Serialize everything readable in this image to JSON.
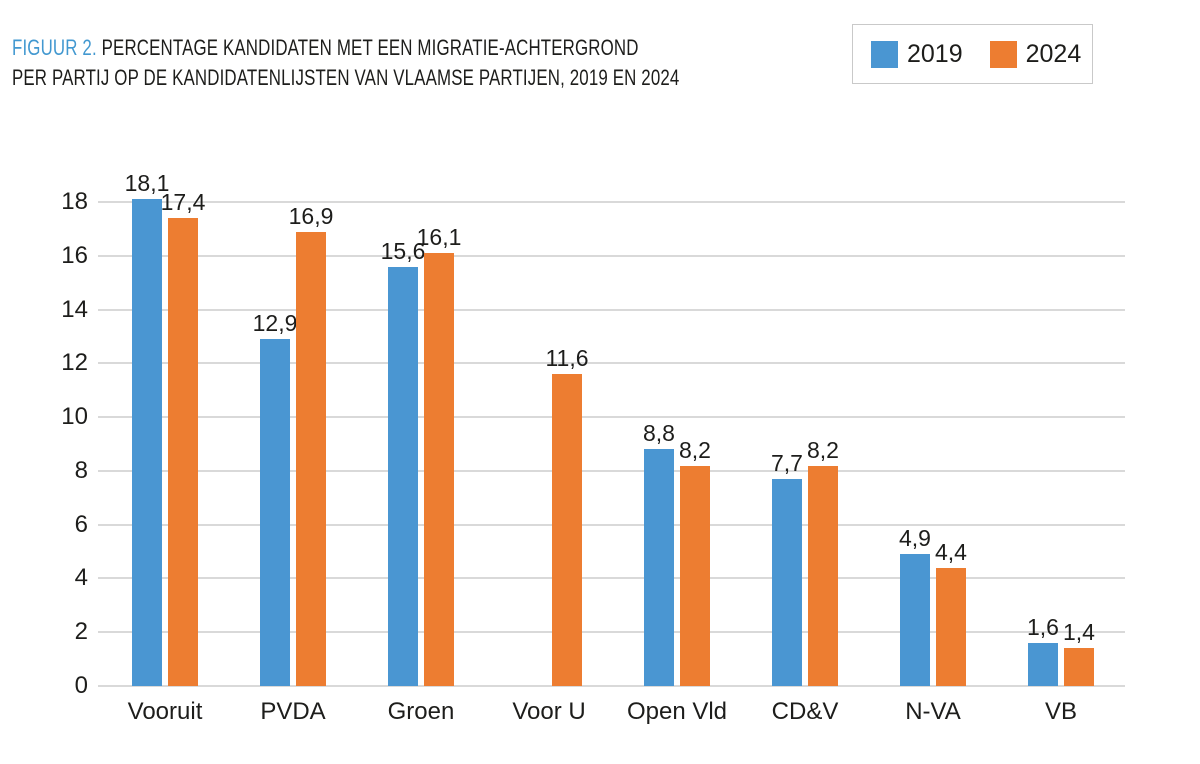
{
  "figure": {
    "number": "FIGUUR 2.",
    "title_line1": " PERCENTAGE KANDIDATEN MET EEN MIGRATIE-ACHTERGROND",
    "title_line2": "PER PARTIJ OP DE KANDIDATENLIJSTEN VAN VLAAMSE PARTIJEN, 2019 EN 2024"
  },
  "colors": {
    "series_2019": "#4A96D2",
    "series_2024": "#ED7D31",
    "title_accent": "#4298D0",
    "gridline": "#D9D9D9",
    "text": "#1D1D1B",
    "legend_border": "#C9C9C9"
  },
  "chart_data": {
    "type": "bar",
    "title": "FIGUUR 2. PERCENTAGE KANDIDATEN MET EEN MIGRATIE-ACHTERGROND PER PARTIJ OP DE KANDIDATENLIJSTEN VAN VLAAMSE PARTIJEN, 2019 EN 2024",
    "categories": [
      "Vooruit",
      "PVDA",
      "Groen",
      "Voor U",
      "Open Vld",
      "CD&V",
      "N-VA",
      "VB"
    ],
    "series": [
      {
        "name": "2019",
        "color": "#4A96D2",
        "values": [
          18.1,
          12.9,
          15.6,
          null,
          8.8,
          7.7,
          4.9,
          1.6
        ],
        "value_labels": [
          "18,1",
          "12,9",
          "15,6",
          "",
          "8,8",
          "7,7",
          "4,9",
          "1,6"
        ]
      },
      {
        "name": "2024",
        "color": "#ED7D31",
        "values": [
          17.4,
          16.9,
          16.1,
          11.6,
          8.2,
          8.2,
          4.4,
          1.4
        ],
        "value_labels": [
          "17,4",
          "16,9",
          "16,1",
          "11,6",
          "8,2",
          "8,2",
          "4,4",
          "1,4"
        ]
      }
    ],
    "y_axis": {
      "min": 0,
      "max": 18,
      "step": 2,
      "tick_labels": [
        "0",
        "2",
        "4",
        "6",
        "8",
        "10",
        "12",
        "14",
        "16",
        "18"
      ]
    },
    "grid": true,
    "legend_position": "top-right",
    "decimal_separator": ",",
    "xlabel": "",
    "ylabel": ""
  }
}
